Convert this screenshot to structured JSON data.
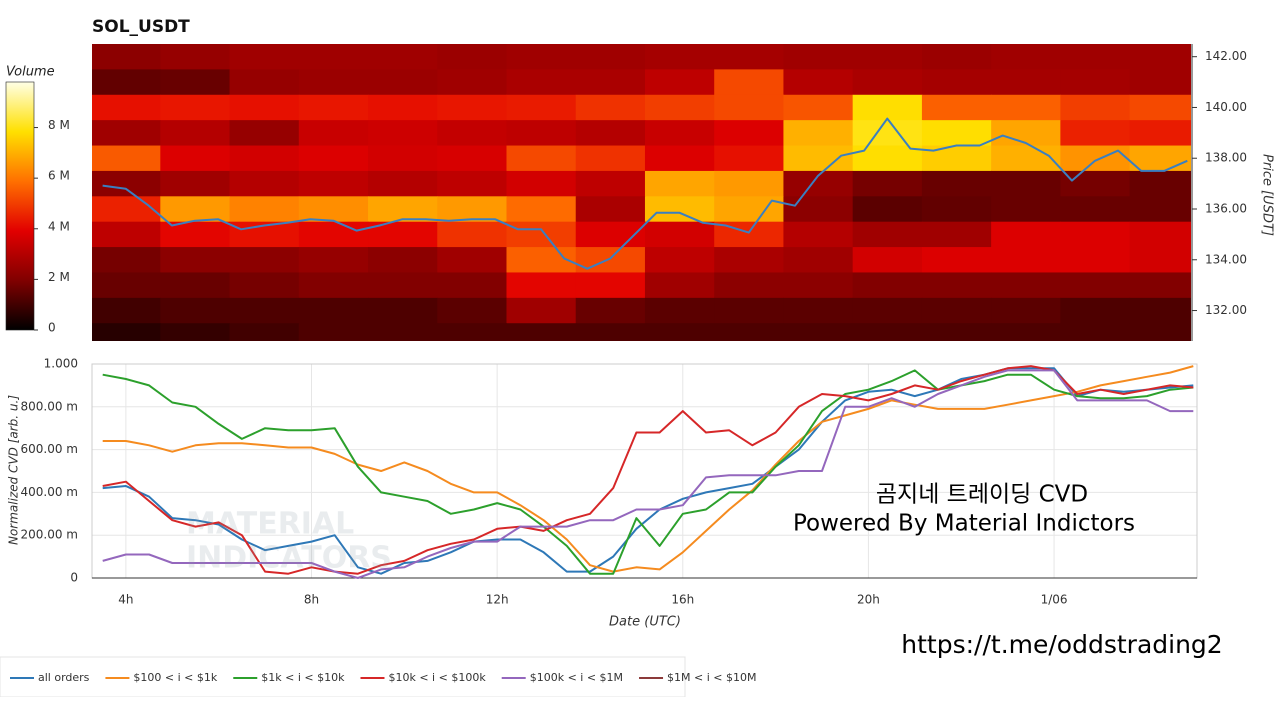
{
  "chart_data": [
    {
      "type": "heatmap",
      "title": "SOL_USDT",
      "ylabel": "Price [USDT]",
      "xlim": [
        3.27,
        27.08
      ],
      "ylim": [
        130.8,
        142.5
      ],
      "yticks": [
        {
          "value": 132,
          "label": "132.00"
        },
        {
          "value": 134,
          "label": "134.00"
        },
        {
          "value": 136,
          "label": "136.00"
        },
        {
          "value": 138,
          "label": "138.00"
        },
        {
          "value": 140,
          "label": "140.00"
        },
        {
          "value": 142,
          "label": "142.00"
        }
      ],
      "x": [
        4,
        5.5,
        7,
        8.5,
        10,
        11.5,
        13,
        14.5,
        16,
        17.5,
        19,
        20.5,
        22,
        23.5,
        25,
        26.5
      ],
      "y": [
        142,
        141,
        140,
        139,
        138,
        137,
        136,
        135,
        134,
        133,
        132,
        131
      ],
      "z": [
        [
          2.2,
          2.4,
          2.6,
          2.6,
          2.6,
          2.5,
          2.6,
          2.6,
          2.7,
          2.7,
          2.6,
          2.6,
          2.5,
          2.6,
          2.6,
          2.6
        ],
        [
          1.5,
          1.6,
          2.4,
          2.5,
          2.5,
          2.6,
          2.8,
          2.8,
          3.2,
          5.2,
          3.0,
          2.8,
          2.7,
          2.7,
          2.7,
          2.6
        ],
        [
          4.2,
          4.3,
          4.2,
          4.3,
          4.2,
          4.3,
          4.4,
          4.8,
          5.0,
          5.2,
          5.4,
          7.8,
          5.6,
          5.6,
          5.0,
          5.2
        ],
        [
          2.6,
          3.0,
          2.4,
          3.4,
          3.5,
          3.3,
          3.2,
          3.0,
          3.4,
          3.8,
          7.0,
          8.0,
          7.8,
          6.8,
          4.5,
          4.4
        ],
        [
          5.5,
          3.8,
          3.6,
          3.8,
          3.6,
          3.7,
          5.2,
          4.8,
          3.8,
          4.2,
          7.2,
          7.8,
          7.5,
          7.0,
          6.5,
          6.8
        ],
        [
          2.2,
          2.6,
          3.0,
          3.2,
          3.0,
          3.2,
          3.6,
          3.2,
          6.8,
          6.6,
          2.4,
          1.8,
          1.6,
          1.6,
          1.8,
          1.6
        ],
        [
          4.5,
          6.6,
          6.2,
          6.4,
          6.8,
          6.6,
          5.8,
          2.8,
          7.2,
          6.8,
          2.2,
          1.4,
          1.5,
          1.6,
          1.6,
          1.6
        ],
        [
          3.2,
          4.0,
          4.2,
          4.0,
          4.0,
          4.8,
          5.0,
          3.8,
          3.6,
          4.6,
          3.0,
          2.6,
          2.6,
          3.8,
          3.8,
          3.6
        ],
        [
          1.8,
          2.2,
          2.2,
          2.4,
          2.2,
          2.6,
          5.6,
          5.2,
          3.2,
          2.8,
          2.6,
          3.6,
          3.8,
          3.8,
          3.8,
          3.6
        ],
        [
          1.6,
          1.6,
          1.8,
          2.0,
          2.0,
          2.0,
          4.0,
          4.0,
          2.6,
          2.2,
          2.2,
          2.0,
          2.0,
          2.0,
          2.0,
          2.0
        ],
        [
          1.0,
          1.2,
          1.2,
          1.2,
          1.2,
          1.4,
          2.6,
          1.6,
          1.4,
          1.4,
          1.4,
          1.4,
          1.4,
          1.4,
          1.2,
          1.2
        ],
        [
          0.6,
          0.8,
          1.0,
          1.2,
          1.2,
          1.2,
          1.2,
          1.2,
          1.2,
          1.2,
          1.2,
          1.2,
          1.2,
          1.2,
          1.2,
          1.2
        ]
      ],
      "colorbar": {
        "label": "Volume",
        "lim": [
          0,
          9.8
        ],
        "ticks": [
          0,
          {
            "value": 2,
            "label": "2 M"
          },
          {
            "value": 4,
            "label": "4 M"
          },
          {
            "value": 6,
            "label": "6 M"
          },
          {
            "value": 8,
            "label": "8 M"
          }
        ]
      },
      "price": {
        "color": "#3a7fc1",
        "x": [
          3.5,
          4,
          4.5,
          5,
          5.5,
          6,
          6.5,
          7,
          7.5,
          8,
          8.5,
          9,
          9.5,
          10,
          10.5,
          11,
          11.5,
          12,
          12.5,
          13,
          13.5,
          14,
          14.5,
          15,
          15.5,
          16,
          16.5,
          17,
          17.5,
          18,
          18.5,
          19,
          19.5,
          20,
          20.5,
          21,
          21.5,
          22,
          22.5,
          23,
          23.5,
          24,
          24.5,
          25,
          25.5,
          26,
          26.5,
          27
        ],
        "values": [
          136.92,
          136.8,
          136.13,
          135.35,
          135.54,
          135.6,
          135.2,
          135.35,
          135.46,
          135.6,
          135.54,
          135.15,
          135.35,
          135.6,
          135.6,
          135.54,
          135.6,
          135.6,
          135.2,
          135.2,
          134.05,
          133.65,
          134.05,
          134.95,
          135.85,
          135.85,
          135.46,
          135.35,
          135.07,
          136.33,
          136.13,
          137.31,
          138.1,
          138.3,
          139.56,
          138.38,
          138.3,
          138.5,
          138.5,
          138.89,
          138.6,
          138.1,
          137.12,
          137.9,
          138.3,
          137.5,
          137.5,
          137.9
        ]
      }
    },
    {
      "type": "line",
      "xlabel": "Date (UTC)",
      "ylabel": "Normalized CVD [arb. u.]",
      "grid": true,
      "xlim": [
        3.27,
        27.08
      ],
      "ylim": [
        0,
        1
      ],
      "xticks": [
        {
          "value": 4,
          "label": "4h"
        },
        {
          "value": 8,
          "label": "8h"
        },
        {
          "value": 12,
          "label": "12h"
        },
        {
          "value": 16,
          "label": "16h"
        },
        {
          "value": 20,
          "label": "20h"
        },
        {
          "value": 24,
          "label": "1/06"
        }
      ],
      "yticks": [
        0,
        {
          "value": 0.2,
          "label": "200.00 m"
        },
        {
          "value": 0.4,
          "label": "400.00 m"
        },
        {
          "value": 0.6,
          "label": "600.00 m"
        },
        {
          "value": 0.8,
          "label": "800.00 m"
        },
        {
          "value": 1,
          "label": "1.000"
        }
      ],
      "x": [
        3.5,
        4,
        4.5,
        5,
        5.5,
        6,
        6.5,
        7,
        7.5,
        8,
        8.5,
        9,
        9.5,
        10,
        10.5,
        11,
        11.5,
        12,
        12.5,
        13,
        13.5,
        14,
        14.5,
        15,
        15.5,
        16,
        16.5,
        17,
        17.5,
        18,
        18.5,
        19,
        19.5,
        20,
        20.5,
        21,
        21.5,
        22,
        22.5,
        23,
        23.5,
        24,
        24.5,
        25,
        25.5,
        26,
        26.5,
        27
      ],
      "series": [
        {
          "name": "all orders",
          "color": "#2e78b7",
          "values": [
            0.42,
            0.43,
            0.38,
            0.28,
            0.27,
            0.25,
            0.18,
            0.13,
            0.15,
            0.17,
            0.2,
            0.05,
            0.02,
            0.07,
            0.08,
            0.12,
            0.17,
            0.18,
            0.18,
            0.12,
            0.03,
            0.03,
            0.1,
            0.23,
            0.32,
            0.37,
            0.4,
            0.42,
            0.44,
            0.52,
            0.6,
            0.73,
            0.83,
            0.87,
            0.88,
            0.85,
            0.88,
            0.93,
            0.95,
            0.98,
            0.98,
            0.98,
            0.85,
            0.88,
            0.87,
            0.88,
            0.89,
            0.9
          ]
        },
        {
          "name": "$100 < i < $1k",
          "color": "#f58b1f",
          "values": [
            0.64,
            0.64,
            0.62,
            0.59,
            0.62,
            0.63,
            0.63,
            0.62,
            0.61,
            0.61,
            0.58,
            0.53,
            0.5,
            0.54,
            0.5,
            0.44,
            0.4,
            0.4,
            0.34,
            0.27,
            0.18,
            0.06,
            0.03,
            0.05,
            0.04,
            0.12,
            0.22,
            0.32,
            0.41,
            0.53,
            0.64,
            0.73,
            0.76,
            0.79,
            0.83,
            0.81,
            0.79,
            0.79,
            0.79,
            0.81,
            0.83,
            0.85,
            0.87,
            0.9,
            0.92,
            0.94,
            0.96,
            0.99
          ]
        },
        {
          "name": "$1k < i < $10k",
          "color": "#2ca02c",
          "values": [
            0.95,
            0.93,
            0.9,
            0.82,
            0.8,
            0.72,
            0.65,
            0.7,
            0.69,
            0.69,
            0.7,
            0.52,
            0.4,
            0.38,
            0.36,
            0.3,
            0.32,
            0.35,
            0.32,
            0.24,
            0.15,
            0.02,
            0.02,
            0.28,
            0.15,
            0.3,
            0.32,
            0.4,
            0.4,
            0.52,
            0.62,
            0.78,
            0.86,
            0.88,
            0.92,
            0.97,
            0.88,
            0.9,
            0.92,
            0.95,
            0.95,
            0.88,
            0.85,
            0.84,
            0.84,
            0.85,
            0.88,
            0.89
          ]
        },
        {
          "name": "$10k < i < $100k",
          "color": "#d62728",
          "values": [
            0.43,
            0.45,
            0.36,
            0.27,
            0.24,
            0.26,
            0.2,
            0.03,
            0.02,
            0.05,
            0.03,
            0.02,
            0.06,
            0.08,
            0.13,
            0.16,
            0.18,
            0.23,
            0.24,
            0.22,
            0.27,
            0.3,
            0.42,
            0.68,
            0.68,
            0.78,
            0.68,
            0.69,
            0.62,
            0.68,
            0.8,
            0.86,
            0.85,
            0.83,
            0.86,
            0.9,
            0.88,
            0.92,
            0.95,
            0.98,
            0.99,
            0.97,
            0.86,
            0.88,
            0.86,
            0.88,
            0.9,
            0.89
          ]
        },
        {
          "name": "$100k < i < $1M",
          "color": "#9467bd",
          "values": [
            0.08,
            0.11,
            0.11,
            0.07,
            0.07,
            0.07,
            0.07,
            0.07,
            0.07,
            0.07,
            0.03,
            0,
            0.04,
            0.05,
            0.1,
            0.14,
            0.17,
            0.17,
            0.24,
            0.24,
            0.24,
            0.27,
            0.27,
            0.32,
            0.32,
            0.34,
            0.47,
            0.48,
            0.48,
            0.48,
            0.5,
            0.5,
            0.8,
            0.8,
            0.84,
            0.8,
            0.86,
            0.9,
            0.94,
            0.97,
            0.97,
            0.97,
            0.83,
            0.83,
            0.83,
            0.83,
            0.78,
            0.78
          ]
        },
        {
          "name": "$1M < i < $10M",
          "color": "#8c3a3a",
          "values": [
            null,
            null,
            null,
            null,
            null,
            null,
            null,
            null,
            null,
            null,
            null,
            null,
            null,
            null,
            null,
            null,
            null,
            null,
            null,
            null,
            null,
            null,
            null,
            null,
            null,
            null,
            null,
            null,
            null,
            null,
            null,
            null,
            null,
            null,
            null,
            null,
            null,
            null,
            null,
            null,
            null,
            null,
            null,
            null,
            null,
            null,
            null,
            null
          ]
        }
      ]
    }
  ],
  "annotations": {
    "watermark": [
      "MATERIAL",
      "INDICATORS"
    ],
    "caption": [
      "곰지네 트레이딩 CVD",
      "Powered By Material Indictors"
    ],
    "link": "https://t.me/oddstrading2"
  }
}
